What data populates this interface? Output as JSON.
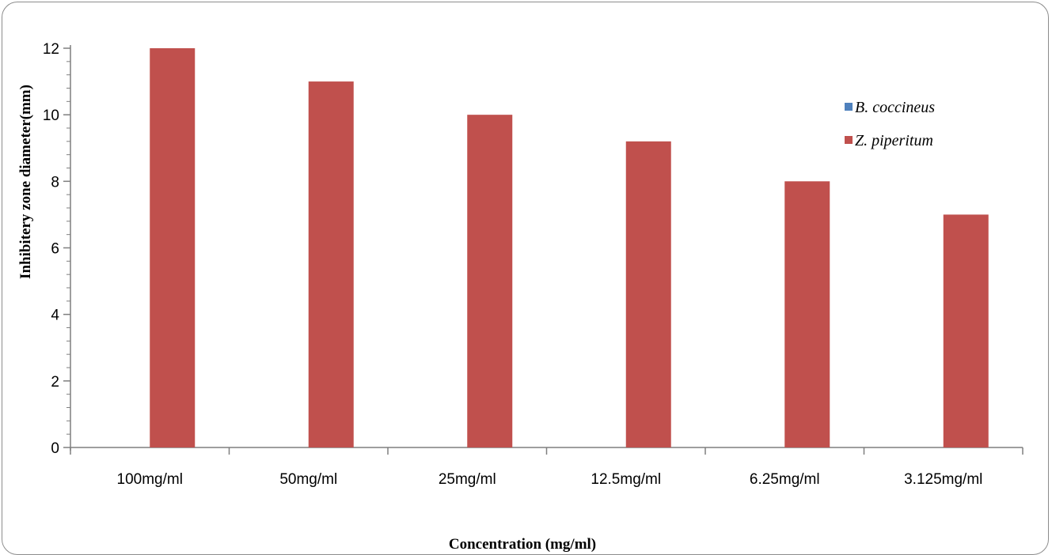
{
  "chart_data": {
    "type": "bar",
    "categories": [
      "100mg/ml",
      "50mg/ml",
      "25mg/ml",
      "12.5mg/ml",
      "6.25mg/ml",
      "3.125mg/ml"
    ],
    "series": [
      {
        "name": "B. coccineus",
        "values": [
          0,
          0,
          0,
          0,
          0,
          0
        ],
        "color": "#4f81bd"
      },
      {
        "name": "Z. piperitum",
        "values": [
          12,
          11,
          10,
          9.2,
          8,
          7
        ],
        "color": "#c0504d"
      }
    ],
    "xlabel": "Concentration (mg/ml)",
    "ylabel": "Inhibitery zone diameter(mm)",
    "ylim": [
      0,
      12
    ],
    "yticks": [
      0,
      2,
      4,
      6,
      8,
      10,
      12
    ],
    "grid": false,
    "legend_position": "top-right"
  }
}
